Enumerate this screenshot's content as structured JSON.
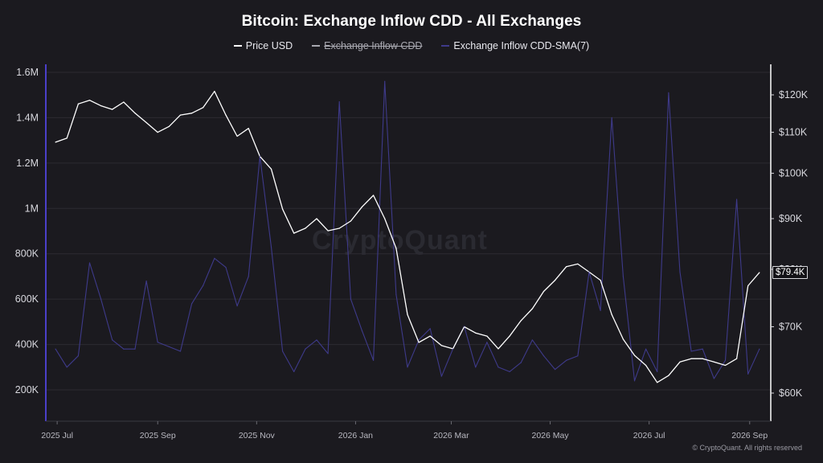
{
  "title": "Bitcoin: Exchange Inflow CDD - All Exchanges",
  "legend": {
    "items": [
      {
        "label": "Price USD",
        "color": "#ffffff",
        "state": "active"
      },
      {
        "label": "Exchange Inflow CDD",
        "color": "#a8a8b0",
        "state": "disabled"
      },
      {
        "label": "Exchange Inflow CDD-SMA(7)",
        "color": "#3e3a8a",
        "state": "active"
      }
    ]
  },
  "watermark": "CryptoQuant",
  "copyright": "© CryptoQuant. All rights reserved",
  "price_badge": "$79.4K",
  "colors": {
    "background": "#1b1a1f",
    "price_line": "#ffffff",
    "sma_line": "#3e3a8a",
    "left_axis": "#4b3fc9",
    "grid": "#2c2b32"
  },
  "chart_data": {
    "type": "line",
    "title": "Bitcoin: Exchange Inflow CDD - All Exchanges",
    "x_tick_labels": [
      "2025 Jul",
      "2025 Sep",
      "2025 Nov",
      "2026 Jan",
      "2026 Mar",
      "2026 May",
      "2026 Jul",
      "2026 Sep"
    ],
    "left_axis": {
      "ticks": [
        200000,
        400000,
        600000,
        800000,
        1000000,
        1200000,
        1400000,
        1600000
      ],
      "tick_labels": [
        "200K",
        "400K",
        "600K",
        "800K",
        "1M",
        "1.2M",
        "1.4M",
        "1.6M"
      ],
      "range": [
        150000,
        1620000
      ]
    },
    "right_axis": {
      "ticks": [
        60000,
        70000,
        80000,
        90000,
        100000,
        110000,
        120000
      ],
      "tick_labels": [
        "$60K",
        "$70K",
        "$80K",
        "$90K",
        "$100K",
        "$110K",
        "$120K"
      ],
      "scale": "log",
      "range": [
        57500,
        128000
      ]
    },
    "grid": true,
    "legend_position": "top-center",
    "series": [
      {
        "name": "Price USD",
        "axis": "right",
        "x": [
          "2025-06-30",
          "2025-07-07",
          "2025-07-14",
          "2025-07-21",
          "2025-07-28",
          "2025-08-04",
          "2025-08-11",
          "2025-08-18",
          "2025-08-25",
          "2025-09-01",
          "2025-09-08",
          "2025-09-15",
          "2025-09-22",
          "2025-09-29",
          "2025-10-06",
          "2025-10-13",
          "2025-10-20",
          "2025-10-27",
          "2025-11-03",
          "2025-11-10",
          "2025-11-17",
          "2025-11-24",
          "2025-12-01",
          "2025-12-08",
          "2025-12-15",
          "2025-12-22",
          "2025-12-29",
          "2026-01-05",
          "2026-01-12",
          "2026-01-19",
          "2026-01-26",
          "2026-02-02",
          "2026-02-09",
          "2026-02-16",
          "2026-02-23",
          "2026-03-02",
          "2026-03-09",
          "2026-03-16",
          "2026-03-23",
          "2026-03-30",
          "2026-04-06",
          "2026-04-13",
          "2026-04-20",
          "2026-04-27",
          "2026-05-04",
          "2026-05-11",
          "2026-05-18",
          "2026-05-25",
          "2026-06-01",
          "2026-06-08",
          "2026-06-15",
          "2026-06-22",
          "2026-06-29",
          "2026-07-06",
          "2026-07-13",
          "2026-07-20",
          "2026-07-27",
          "2026-08-03",
          "2026-08-10",
          "2026-08-17",
          "2026-08-24",
          "2026-08-31",
          "2026-09-07"
        ],
        "values": [
          107500,
          108500,
          117500,
          118500,
          117000,
          116000,
          118000,
          115000,
          112500,
          110000,
          111500,
          114500,
          115000,
          116500,
          121000,
          114500,
          109000,
          111000,
          104000,
          101000,
          92000,
          87000,
          88000,
          90000,
          87500,
          88000,
          89500,
          92500,
          95000,
          90000,
          84000,
          72000,
          67500,
          68500,
          67000,
          66500,
          70000,
          69000,
          68500,
          66500,
          68500,
          71000,
          73000,
          76000,
          78000,
          80500,
          81000,
          79500,
          78000,
          72000,
          68000,
          65500,
          64000,
          61500,
          62500,
          64500,
          65000,
          65000,
          64500,
          64000,
          65000,
          77000,
          79400
        ]
      },
      {
        "name": "Exchange Inflow CDD-SMA(7)",
        "axis": "left",
        "x": [
          "2025-06-30",
          "2025-07-07",
          "2025-07-14",
          "2025-07-21",
          "2025-07-28",
          "2025-08-04",
          "2025-08-11",
          "2025-08-18",
          "2025-08-25",
          "2025-09-01",
          "2025-09-08",
          "2025-09-15",
          "2025-09-22",
          "2025-09-29",
          "2025-10-06",
          "2025-10-13",
          "2025-10-20",
          "2025-10-27",
          "2025-11-03",
          "2025-11-10",
          "2025-11-17",
          "2025-11-24",
          "2025-12-01",
          "2025-12-08",
          "2025-12-15",
          "2025-12-22",
          "2025-12-29",
          "2026-01-05",
          "2026-01-12",
          "2026-01-19",
          "2026-01-26",
          "2026-02-02",
          "2026-02-09",
          "2026-02-16",
          "2026-02-23",
          "2026-03-02",
          "2026-03-09",
          "2026-03-16",
          "2026-03-23",
          "2026-03-30",
          "2026-04-06",
          "2026-04-13",
          "2026-04-20",
          "2026-04-27",
          "2026-05-04",
          "2026-05-11",
          "2026-05-18",
          "2026-05-25",
          "2026-06-01",
          "2026-06-08",
          "2026-06-15",
          "2026-06-22",
          "2026-06-29",
          "2026-07-06",
          "2026-07-13",
          "2026-07-20",
          "2026-07-27",
          "2026-08-03",
          "2026-08-10",
          "2026-08-17",
          "2026-08-24",
          "2026-08-31",
          "2026-09-07"
        ],
        "values": [
          380000,
          300000,
          350000,
          760000,
          600000,
          420000,
          380000,
          380000,
          680000,
          410000,
          390000,
          370000,
          580000,
          660000,
          780000,
          740000,
          570000,
          700000,
          1230000,
          830000,
          370000,
          280000,
          380000,
          420000,
          360000,
          1470000,
          600000,
          460000,
          330000,
          1560000,
          620000,
          300000,
          420000,
          470000,
          260000,
          380000,
          480000,
          300000,
          410000,
          300000,
          280000,
          320000,
          420000,
          350000,
          290000,
          330000,
          350000,
          720000,
          550000,
          1400000,
          700000,
          240000,
          380000,
          280000,
          1510000,
          720000,
          370000,
          380000,
          250000,
          330000,
          1040000,
          270000,
          380000
        ]
      }
    ]
  }
}
